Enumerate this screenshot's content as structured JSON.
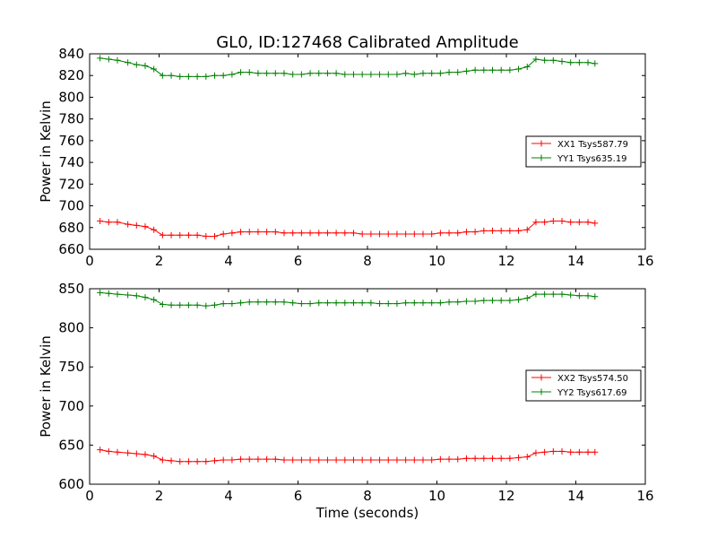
{
  "figure": {
    "title": "GL0, ID:127468 Calibrated Amplitude",
    "xlabel": "Time (seconds)"
  },
  "chart_data": [
    {
      "type": "line",
      "title": "GL0, ID:127468 Calibrated Amplitude",
      "xlabel": "",
      "ylabel": "Power in Kelvin",
      "xlim": [
        0,
        16
      ],
      "ylim": [
        660,
        840
      ],
      "xticks": [
        0,
        2,
        4,
        6,
        8,
        10,
        12,
        14,
        16
      ],
      "yticks": [
        660,
        680,
        700,
        720,
        740,
        760,
        780,
        800,
        820,
        840
      ],
      "grid": false,
      "legend": "right",
      "x": [
        0.3,
        0.55,
        0.8,
        1.1,
        1.35,
        1.6,
        1.85,
        2.1,
        2.35,
        2.6,
        2.85,
        3.1,
        3.35,
        3.6,
        3.85,
        4.1,
        4.35,
        4.6,
        4.85,
        5.1,
        5.35,
        5.6,
        5.85,
        6.1,
        6.35,
        6.6,
        6.85,
        7.1,
        7.35,
        7.6,
        7.85,
        8.1,
        8.35,
        8.6,
        8.85,
        9.1,
        9.35,
        9.6,
        9.85,
        10.1,
        10.35,
        10.6,
        10.85,
        11.1,
        11.35,
        11.6,
        11.85,
        12.1,
        12.35,
        12.6,
        12.85,
        13.1,
        13.35,
        13.6,
        13.85,
        14.1,
        14.35,
        14.55
      ],
      "series": [
        {
          "name": "XX1 Tsys587.79",
          "color": "#ff0000",
          "values": [
            686,
            685,
            685,
            683,
            682,
            681,
            678,
            673,
            673,
            673,
            673,
            673,
            672,
            672,
            674,
            675,
            676,
            676,
            676,
            676,
            676,
            675,
            675,
            675,
            675,
            675,
            675,
            675,
            675,
            675,
            674,
            674,
            674,
            674,
            674,
            674,
            674,
            674,
            674,
            675,
            675,
            675,
            676,
            676,
            677,
            677,
            677,
            677,
            677,
            678,
            685,
            685,
            686,
            686,
            685,
            685,
            685,
            684
          ]
        },
        {
          "name": "YY1 Tsys635.19",
          "color": "#008000",
          "values": [
            836,
            835,
            834,
            832,
            830,
            829,
            826,
            820,
            820,
            819,
            819,
            819,
            819,
            820,
            820,
            821,
            823,
            823,
            822,
            822,
            822,
            822,
            821,
            821,
            822,
            822,
            822,
            822,
            821,
            821,
            821,
            821,
            821,
            821,
            821,
            822,
            821,
            822,
            822,
            822,
            823,
            823,
            824,
            825,
            825,
            825,
            825,
            825,
            826,
            828,
            835,
            834,
            834,
            833,
            832,
            832,
            832,
            831
          ]
        }
      ]
    },
    {
      "type": "line",
      "title": "",
      "xlabel": "Time (seconds)",
      "ylabel": "Power in Kelvin",
      "xlim": [
        0,
        16
      ],
      "ylim": [
        600,
        850
      ],
      "xticks": [
        0,
        2,
        4,
        6,
        8,
        10,
        12,
        14,
        16
      ],
      "yticks": [
        600,
        650,
        700,
        750,
        800,
        850
      ],
      "grid": false,
      "legend": "right",
      "x": [
        0.3,
        0.55,
        0.8,
        1.1,
        1.35,
        1.6,
        1.85,
        2.1,
        2.35,
        2.6,
        2.85,
        3.1,
        3.35,
        3.6,
        3.85,
        4.1,
        4.35,
        4.6,
        4.85,
        5.1,
        5.35,
        5.6,
        5.85,
        6.1,
        6.35,
        6.6,
        6.85,
        7.1,
        7.35,
        7.6,
        7.85,
        8.1,
        8.35,
        8.6,
        8.85,
        9.1,
        9.35,
        9.6,
        9.85,
        10.1,
        10.35,
        10.6,
        10.85,
        11.1,
        11.35,
        11.6,
        11.85,
        12.1,
        12.35,
        12.6,
        12.85,
        13.1,
        13.35,
        13.6,
        13.85,
        14.1,
        14.35,
        14.55
      ],
      "series": [
        {
          "name": "XX2 Tsys574.50",
          "color": "#ff0000",
          "values": [
            644,
            642,
            641,
            640,
            639,
            638,
            636,
            631,
            630,
            629,
            629,
            629,
            629,
            630,
            631,
            631,
            632,
            632,
            632,
            632,
            632,
            631,
            631,
            631,
            631,
            631,
            631,
            631,
            631,
            631,
            631,
            631,
            631,
            631,
            631,
            631,
            631,
            631,
            631,
            632,
            632,
            632,
            633,
            633,
            633,
            633,
            633,
            633,
            634,
            635,
            640,
            641,
            642,
            642,
            641,
            641,
            641,
            641
          ]
        },
        {
          "name": "YY2 Tsys617.69",
          "color": "#008000",
          "values": [
            845,
            844,
            843,
            842,
            841,
            839,
            836,
            830,
            829,
            829,
            829,
            829,
            828,
            829,
            831,
            831,
            832,
            833,
            833,
            833,
            833,
            833,
            832,
            831,
            831,
            832,
            832,
            832,
            832,
            832,
            832,
            832,
            831,
            831,
            831,
            832,
            832,
            832,
            832,
            832,
            833,
            833,
            834,
            834,
            835,
            835,
            835,
            835,
            836,
            838,
            843,
            843,
            843,
            843,
            842,
            841,
            841,
            840
          ]
        }
      ]
    }
  ]
}
